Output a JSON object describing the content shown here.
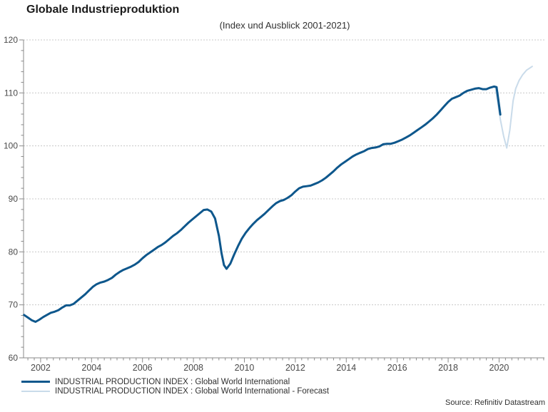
{
  "chart_data": {
    "type": "line",
    "title": "Globale Industrieproduktion",
    "subtitle": "(Index und Ausblick 2001-2021)",
    "source": "Source: Refinitiv Datastream",
    "xlim": [
      2001.33,
      2021.78
    ],
    "ylim": [
      60,
      120
    ],
    "y_ticks": [
      60,
      70,
      80,
      90,
      100,
      110,
      120
    ],
    "y_minor_step": 2,
    "x_ticks": [
      2002,
      2004,
      2006,
      2008,
      2010,
      2012,
      2014,
      2016,
      2018,
      2020
    ],
    "x_minor_step": 0.25,
    "grid": "horizontal-dashed",
    "legend_position": "bottom-left",
    "colors": {
      "axis": "#8a8a8a",
      "gridline": "#c8c8c8",
      "tick_label": "#4a4a4a",
      "actual_line": "#0e578c",
      "forecast_line": "#c9dbea"
    },
    "series": [
      {
        "name": "INDUSTRIAL PRODUCTION INDEX : Global World International",
        "color": "#0e578c",
        "stroke_width": 3,
        "points": [
          [
            2001.35,
            68.1
          ],
          [
            2001.5,
            67.6
          ],
          [
            2001.65,
            67.1
          ],
          [
            2001.8,
            66.8
          ],
          [
            2001.95,
            67.2
          ],
          [
            2002.1,
            67.7
          ],
          [
            2002.25,
            68.1
          ],
          [
            2002.4,
            68.5
          ],
          [
            2002.55,
            68.7
          ],
          [
            2002.7,
            69.0
          ],
          [
            2002.85,
            69.5
          ],
          [
            2003.0,
            69.9
          ],
          [
            2003.15,
            69.9
          ],
          [
            2003.3,
            70.2
          ],
          [
            2003.45,
            70.8
          ],
          [
            2003.6,
            71.4
          ],
          [
            2003.75,
            72.0
          ],
          [
            2003.9,
            72.7
          ],
          [
            2004.05,
            73.4
          ],
          [
            2004.2,
            73.9
          ],
          [
            2004.35,
            74.2
          ],
          [
            2004.5,
            74.4
          ],
          [
            2004.65,
            74.7
          ],
          [
            2004.8,
            75.1
          ],
          [
            2004.95,
            75.7
          ],
          [
            2005.1,
            76.2
          ],
          [
            2005.25,
            76.6
          ],
          [
            2005.4,
            76.9
          ],
          [
            2005.55,
            77.2
          ],
          [
            2005.7,
            77.6
          ],
          [
            2005.85,
            78.1
          ],
          [
            2006.0,
            78.8
          ],
          [
            2006.15,
            79.4
          ],
          [
            2006.3,
            79.9
          ],
          [
            2006.45,
            80.4
          ],
          [
            2006.6,
            80.9
          ],
          [
            2006.75,
            81.3
          ],
          [
            2006.9,
            81.8
          ],
          [
            2007.05,
            82.4
          ],
          [
            2007.2,
            83.0
          ],
          [
            2007.35,
            83.5
          ],
          [
            2007.5,
            84.1
          ],
          [
            2007.65,
            84.8
          ],
          [
            2007.8,
            85.5
          ],
          [
            2007.95,
            86.1
          ],
          [
            2008.1,
            86.7
          ],
          [
            2008.25,
            87.3
          ],
          [
            2008.4,
            87.9
          ],
          [
            2008.55,
            88.0
          ],
          [
            2008.7,
            87.6
          ],
          [
            2008.85,
            86.3
          ],
          [
            2009.0,
            83.0
          ],
          [
            2009.1,
            79.8
          ],
          [
            2009.2,
            77.5
          ],
          [
            2009.3,
            76.8
          ],
          [
            2009.45,
            77.8
          ],
          [
            2009.6,
            79.5
          ],
          [
            2009.75,
            81.1
          ],
          [
            2009.9,
            82.5
          ],
          [
            2010.05,
            83.6
          ],
          [
            2010.2,
            84.5
          ],
          [
            2010.35,
            85.3
          ],
          [
            2010.5,
            86.0
          ],
          [
            2010.65,
            86.6
          ],
          [
            2010.8,
            87.2
          ],
          [
            2010.95,
            87.9
          ],
          [
            2011.1,
            88.6
          ],
          [
            2011.25,
            89.2
          ],
          [
            2011.4,
            89.6
          ],
          [
            2011.55,
            89.8
          ],
          [
            2011.7,
            90.2
          ],
          [
            2011.85,
            90.7
          ],
          [
            2012.0,
            91.4
          ],
          [
            2012.15,
            92.0
          ],
          [
            2012.3,
            92.3
          ],
          [
            2012.45,
            92.4
          ],
          [
            2012.6,
            92.5
          ],
          [
            2012.75,
            92.8
          ],
          [
            2012.9,
            93.1
          ],
          [
            2013.05,
            93.5
          ],
          [
            2013.2,
            94.0
          ],
          [
            2013.35,
            94.6
          ],
          [
            2013.5,
            95.2
          ],
          [
            2013.65,
            95.9
          ],
          [
            2013.8,
            96.5
          ],
          [
            2013.95,
            97.0
          ],
          [
            2014.1,
            97.5
          ],
          [
            2014.25,
            98.0
          ],
          [
            2014.4,
            98.4
          ],
          [
            2014.55,
            98.7
          ],
          [
            2014.7,
            99.0
          ],
          [
            2014.85,
            99.4
          ],
          [
            2015.0,
            99.6
          ],
          [
            2015.15,
            99.7
          ],
          [
            2015.3,
            99.9
          ],
          [
            2015.45,
            100.3
          ],
          [
            2015.6,
            100.4
          ],
          [
            2015.75,
            100.4
          ],
          [
            2015.9,
            100.6
          ],
          [
            2016.05,
            100.9
          ],
          [
            2016.2,
            101.2
          ],
          [
            2016.35,
            101.6
          ],
          [
            2016.5,
            102.0
          ],
          [
            2016.65,
            102.5
          ],
          [
            2016.8,
            103.0
          ],
          [
            2016.95,
            103.5
          ],
          [
            2017.1,
            104.0
          ],
          [
            2017.25,
            104.6
          ],
          [
            2017.4,
            105.2
          ],
          [
            2017.55,
            105.9
          ],
          [
            2017.7,
            106.7
          ],
          [
            2017.85,
            107.5
          ],
          [
            2018.0,
            108.3
          ],
          [
            2018.15,
            108.9
          ],
          [
            2018.3,
            109.2
          ],
          [
            2018.45,
            109.5
          ],
          [
            2018.6,
            110.0
          ],
          [
            2018.75,
            110.4
          ],
          [
            2018.9,
            110.6
          ],
          [
            2019.05,
            110.8
          ],
          [
            2019.2,
            110.9
          ],
          [
            2019.35,
            110.7
          ],
          [
            2019.5,
            110.7
          ],
          [
            2019.65,
            111.0
          ],
          [
            2019.8,
            111.2
          ],
          [
            2019.9,
            111.1
          ],
          [
            2020.05,
            105.9
          ]
        ]
      },
      {
        "name": "INDUSTRIAL PRODUCTION INDEX : Global World International - Forecast",
        "color": "#c9dbea",
        "stroke_width": 2,
        "points": [
          [
            2019.85,
            111.2
          ],
          [
            2020.05,
            105.0
          ],
          [
            2020.18,
            101.8
          ],
          [
            2020.3,
            99.6
          ],
          [
            2020.42,
            103.0
          ],
          [
            2020.55,
            108.5
          ],
          [
            2020.65,
            110.8
          ],
          [
            2020.78,
            112.3
          ],
          [
            2020.92,
            113.4
          ],
          [
            2021.08,
            114.3
          ],
          [
            2021.3,
            115.0
          ]
        ]
      }
    ]
  }
}
